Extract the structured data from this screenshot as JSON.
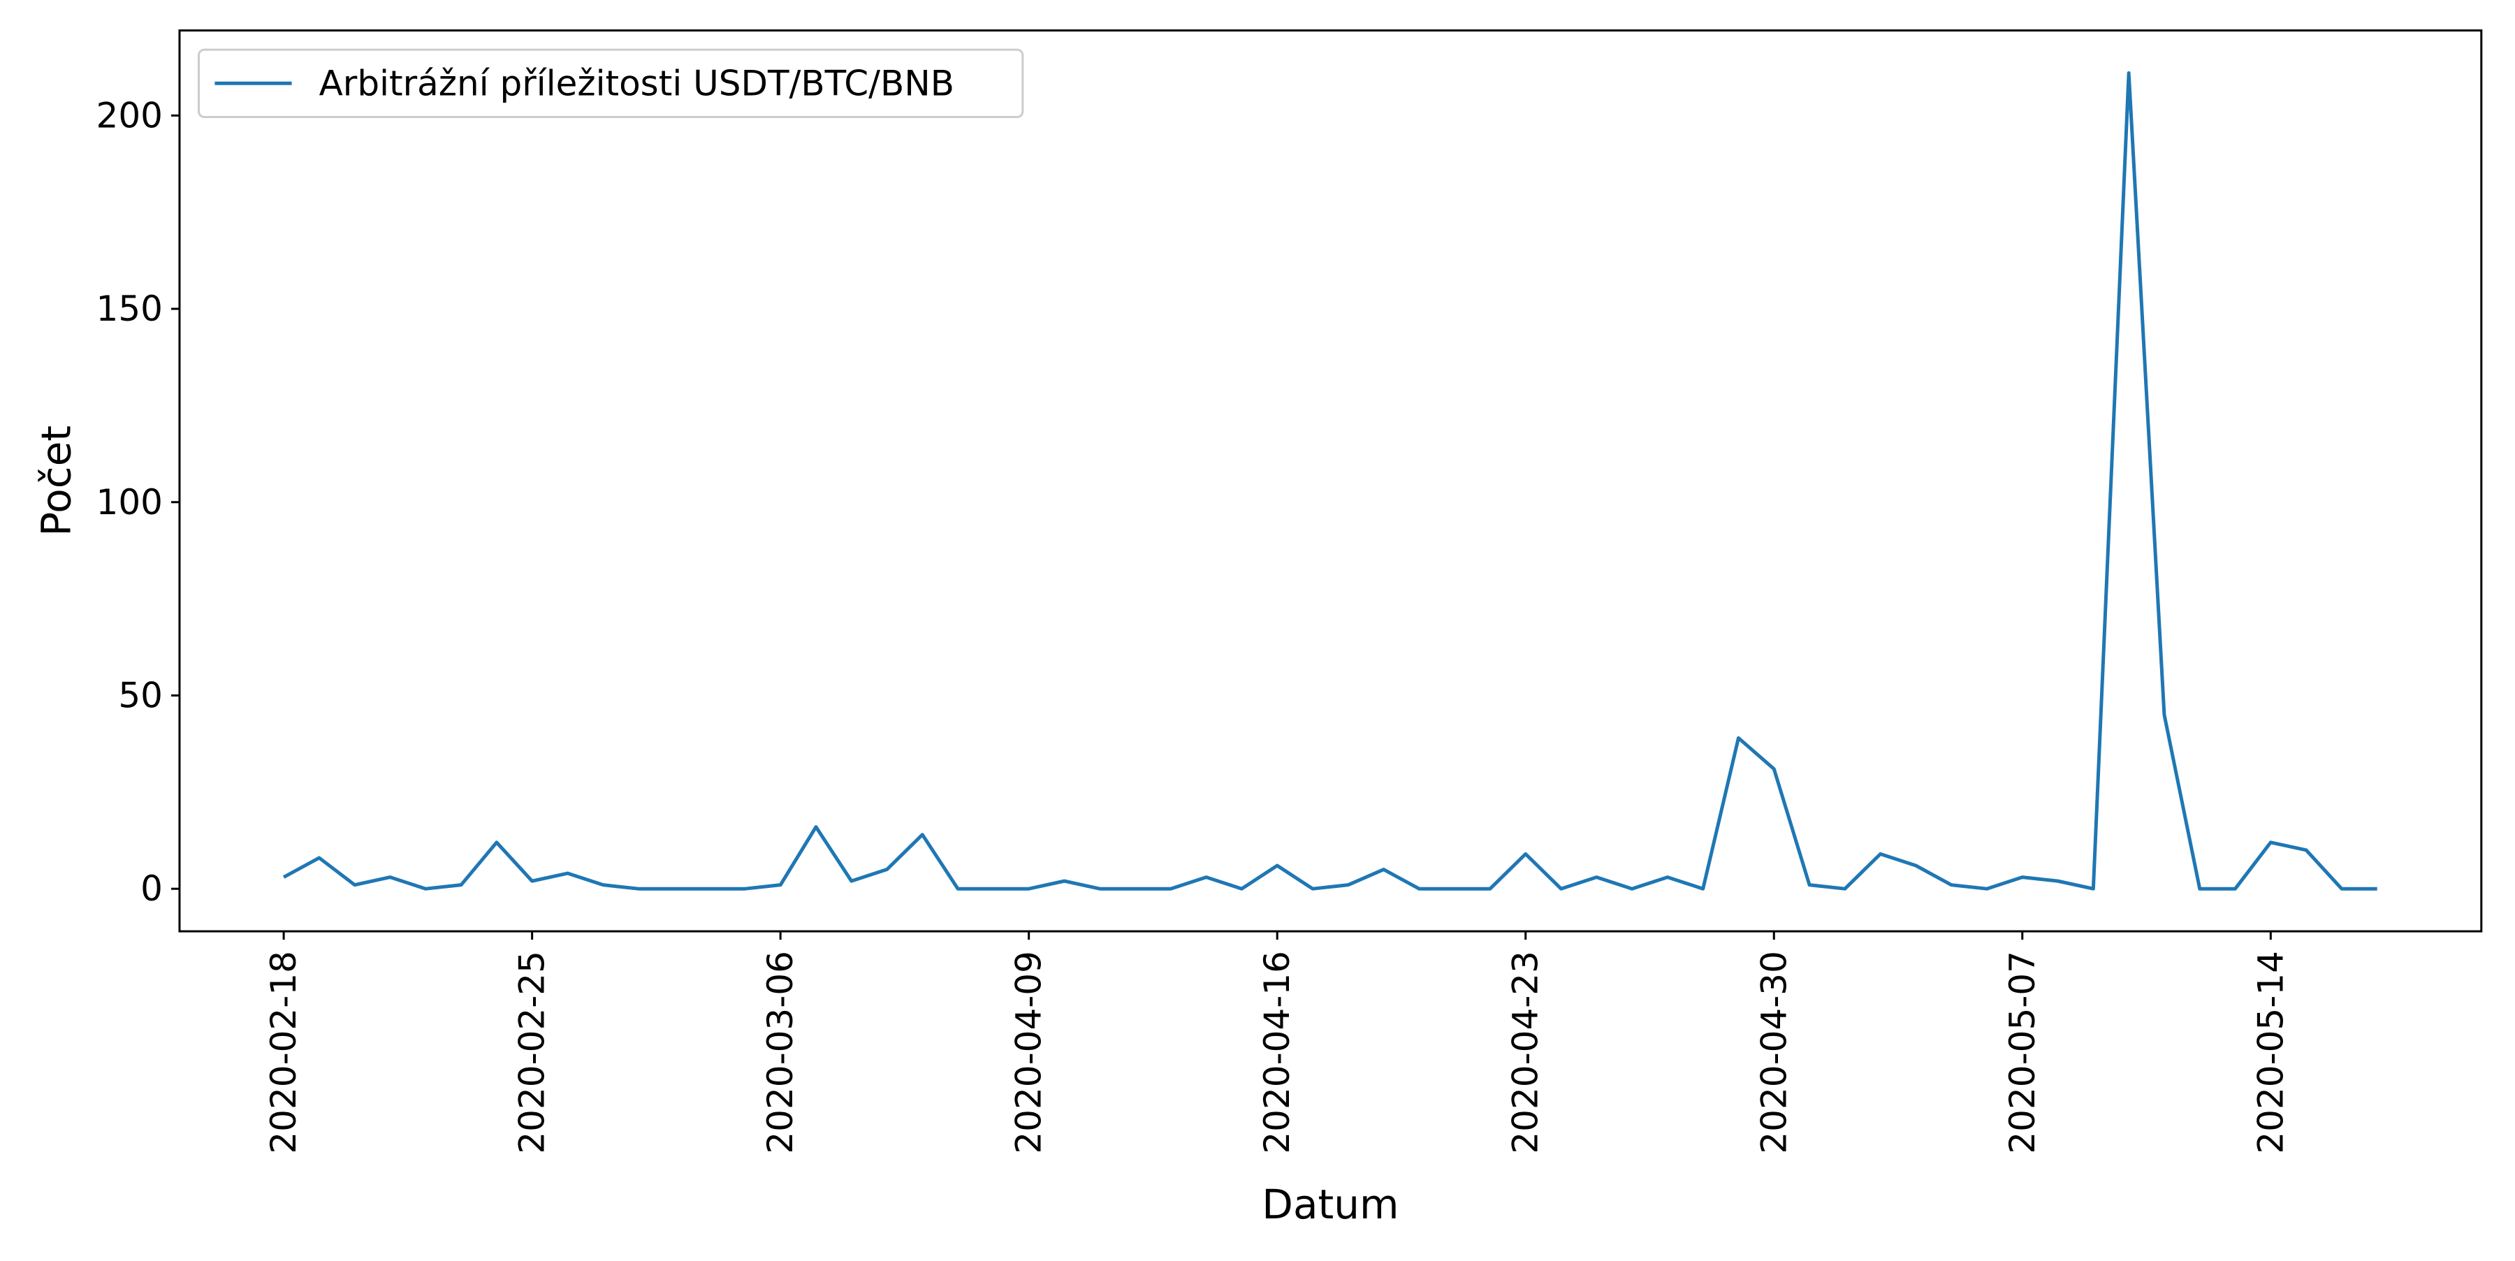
{
  "chart_data": {
    "type": "line",
    "xlabel": "Datum",
    "ylabel": "Počet",
    "ylim": [
      -11,
      222
    ],
    "y_ticks": [
      0,
      50,
      100,
      150,
      200
    ],
    "x_ticks": [
      "2020-02-18",
      "2020-02-25",
      "2020-03-06",
      "2020-04-09",
      "2020-04-16",
      "2020-04-23",
      "2020-04-30",
      "2020-05-07",
      "2020-05-14"
    ],
    "legend_position": "top-left",
    "grid": false,
    "series": [
      {
        "name": "Arbitrážní příležitosti USDT/BTC/BNB",
        "color": "#1f77b4",
        "values": [
          3,
          8,
          1,
          3,
          0,
          1,
          12,
          2,
          4,
          1,
          0,
          0,
          0,
          0,
          1,
          16,
          2,
          5,
          14,
          0,
          0,
          0,
          2,
          0,
          0,
          0,
          3,
          0,
          6,
          0,
          1,
          5,
          0,
          0,
          0,
          9,
          0,
          3,
          0,
          3,
          0,
          39,
          31,
          1,
          0,
          9,
          6,
          1,
          0,
          3,
          2,
          0,
          211,
          45,
          0,
          0,
          12,
          10,
          0,
          0
        ]
      }
    ]
  }
}
